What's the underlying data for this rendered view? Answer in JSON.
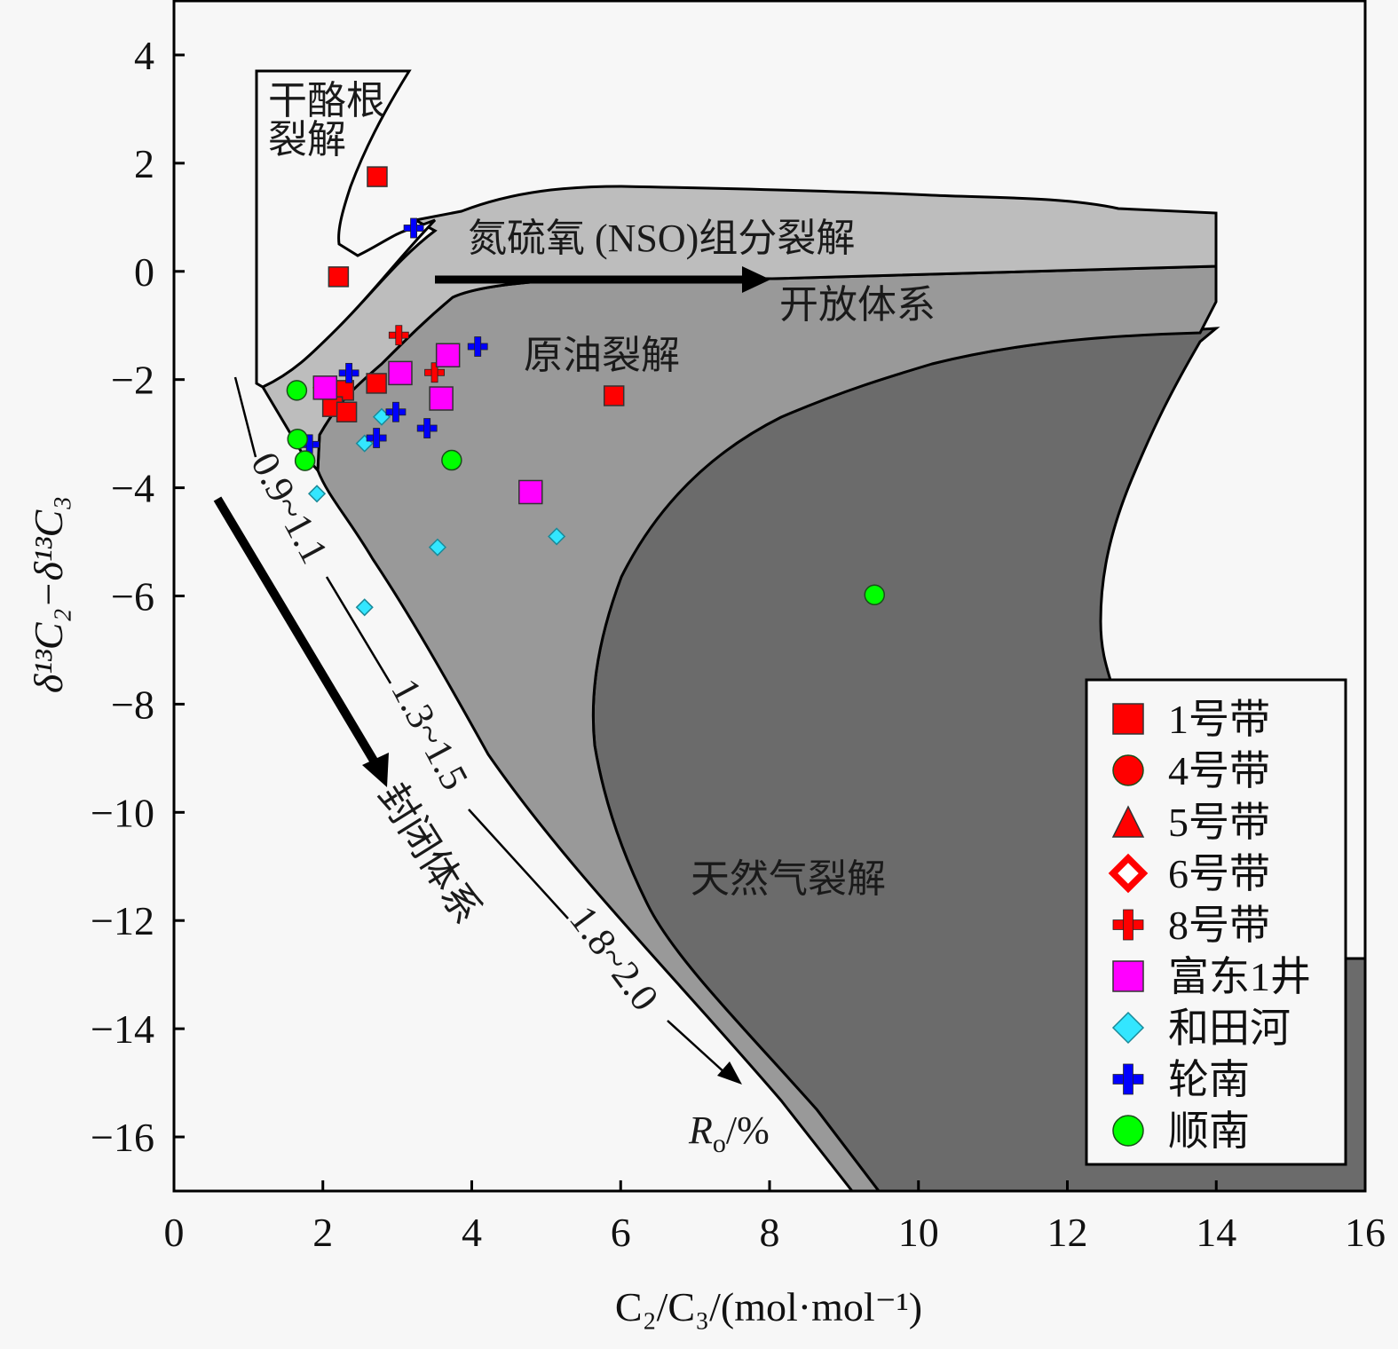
{
  "chart_data": {
    "type": "scatter",
    "title": "",
    "xlabel": "C₂/C₃/(mol·mol⁻¹)",
    "ylabel": "δ¹³C₂−δ¹³C₃",
    "xlim": [
      0,
      16
    ],
    "ylim": [
      -17,
      5
    ],
    "x_ticks": [
      0,
      2,
      4,
      6,
      8,
      10,
      12,
      14,
      16
    ],
    "x_tick_labels": [
      "0",
      "2",
      "4",
      "6",
      "8",
      "10",
      "12",
      "14",
      "16"
    ],
    "y_ticks": [
      4,
      2,
      0,
      -2,
      -4,
      -6,
      -8,
      -10,
      -12,
      -14,
      -16
    ],
    "y_tick_labels": [
      "4",
      "2",
      "0",
      "−2",
      "−4",
      "−6",
      "−8",
      "−10",
      "−12",
      "−14",
      "−16"
    ],
    "grid": false,
    "legend_position": "bottom-right",
    "region_labels": {
      "kerogen": [
        "干酪根",
        "裂解"
      ],
      "nso": "氮硫氧 (NSO)组分裂解",
      "open_system": "开放体系",
      "oil": "原油裂解",
      "gas": "天然气裂解",
      "closed_system": "封闭体系"
    },
    "ro_labels": [
      "0.9~1.1",
      "1.3~1.5",
      "1.8~2.0"
    ],
    "ro_axis_label": "Ro/%",
    "series": [
      {
        "name": "1号带",
        "marker": "square",
        "color": "#ff0000",
        "points": [
          [
            2.73,
            1.75
          ],
          [
            2.21,
            -0.1
          ],
          [
            2.72,
            -2.07
          ],
          [
            2.28,
            -2.2
          ],
          [
            2.13,
            -2.5
          ],
          [
            2.32,
            -2.6
          ],
          [
            5.91,
            -2.3
          ]
        ]
      },
      {
        "name": "4号带",
        "marker": "circle",
        "color": "#ff0000",
        "points": []
      },
      {
        "name": "5号带",
        "marker": "triangle",
        "color": "#ff0000",
        "points": []
      },
      {
        "name": "6号带",
        "marker": "open-diamond",
        "color": "#ff0000",
        "points": [
          [
            2.0,
            -2.15
          ]
        ]
      },
      {
        "name": "8号带",
        "marker": "cross",
        "color": "#ff0000",
        "points": [
          [
            3.02,
            -1.18
          ],
          [
            3.5,
            -1.87
          ]
        ]
      },
      {
        "name": "富东1井",
        "marker": "square",
        "color": "#ff00ff",
        "points": [
          [
            3.04,
            -1.88
          ],
          [
            3.68,
            -1.55
          ],
          [
            3.59,
            -2.35
          ],
          [
            4.79,
            -4.08
          ],
          [
            2.03,
            -2.15
          ]
        ]
      },
      {
        "name": "和田河",
        "marker": "diamond",
        "color": "#33e6ff",
        "points": [
          [
            2.79,
            -2.69
          ],
          [
            2.56,
            -3.18
          ],
          [
            1.92,
            -4.11
          ],
          [
            3.54,
            -5.1
          ],
          [
            5.14,
            -4.9
          ],
          [
            2.56,
            -6.21
          ]
        ]
      },
      {
        "name": "轮南",
        "marker": "cross",
        "color": "#0000ff",
        "points": [
          [
            3.22,
            0.8
          ],
          [
            4.08,
            -1.39
          ],
          [
            2.35,
            -1.88
          ],
          [
            2.98,
            -2.6
          ],
          [
            2.72,
            -3.08
          ],
          [
            3.4,
            -2.9
          ],
          [
            1.82,
            -3.2
          ]
        ]
      },
      {
        "name": "顺南",
        "marker": "circle",
        "color": "#00ff00",
        "points": [
          [
            1.65,
            -2.2
          ],
          [
            1.66,
            -3.1
          ],
          [
            1.76,
            -3.5
          ],
          [
            3.73,
            -3.49
          ],
          [
            9.41,
            -5.98
          ]
        ]
      }
    ],
    "colors": {
      "nso_fill": "#bdbdbd",
      "oil_fill": "#999999",
      "gas_fill": "#6b6b6b",
      "background": "#f7f7f7"
    }
  }
}
